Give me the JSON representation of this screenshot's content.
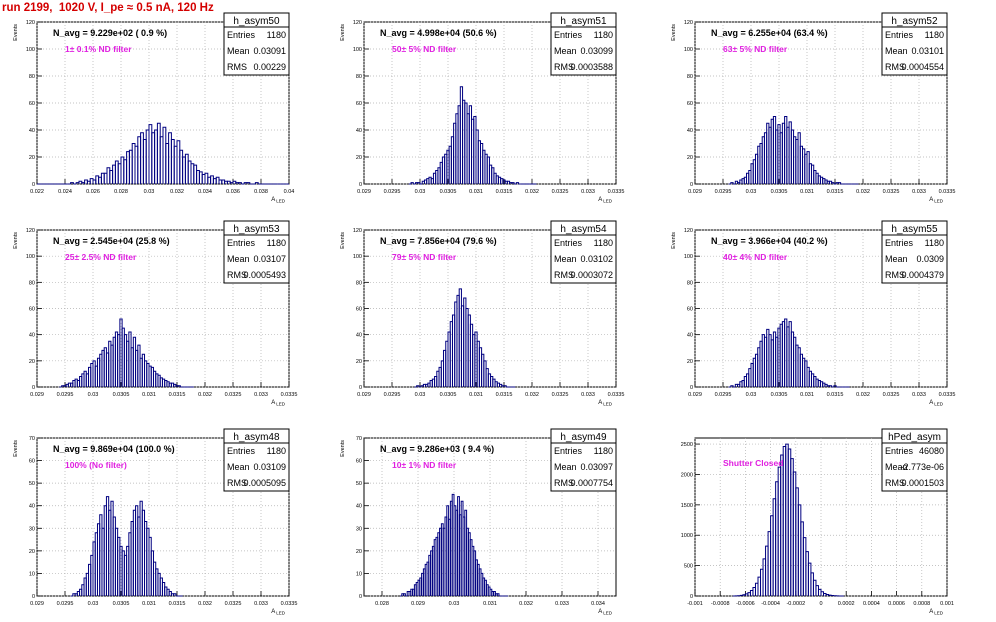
{
  "page": {
    "title": "run 2199,  1020 V, I_pe ≈ 0.5 nA, 120 Hz"
  },
  "chart_data": [
    {
      "type": "histogram",
      "name": "h_asym50",
      "navg": "N_avg = 9.229e+02 ( 0.9 %)",
      "filter_label": "1± 0.1% ND filter",
      "stats": [
        [
          "Entries",
          "1180"
        ],
        [
          "Mean",
          "0.03091"
        ],
        [
          "RMS",
          "0.00229"
        ]
      ],
      "xlabel": "A_LED",
      "ylabel": "Events",
      "xlim": [
        0.022,
        0.04
      ],
      "ylim": [
        0,
        120
      ],
      "xticks": [
        0.022,
        0.024,
        0.026,
        0.028,
        0.03,
        0.032,
        0.034,
        0.036,
        0.038,
        0.04
      ],
      "xtick_labels": [
        "0.022",
        "0.024",
        "0.026",
        "0.028",
        "0.03",
        "0.032",
        "0.034",
        "0.036",
        "0.038",
        "0.04"
      ],
      "yticks": [
        0,
        20,
        40,
        60,
        80,
        100,
        120
      ],
      "xstart": 0.022,
      "bin_width": 0.0002,
      "counts": [
        0,
        0,
        0,
        0,
        0,
        0,
        0,
        0,
        0,
        0,
        0,
        0,
        1,
        0,
        1,
        2,
        1,
        3,
        2,
        4,
        3,
        6,
        5,
        8,
        8,
        12,
        10,
        14,
        17,
        15,
        20,
        18,
        24,
        25,
        30,
        28,
        35,
        38,
        33,
        40,
        44,
        38,
        40,
        45,
        35,
        42,
        30,
        38,
        33,
        28,
        32,
        25,
        20,
        22,
        17,
        15,
        14,
        10,
        9,
        7,
        8,
        5,
        6,
        4,
        5,
        3,
        3,
        2,
        2,
        1,
        2,
        1,
        1,
        0,
        1,
        1,
        0,
        0,
        1,
        0,
        0,
        0,
        0,
        0,
        0,
        0,
        0,
        0,
        0,
        0
      ]
    },
    {
      "type": "histogram",
      "name": "h_asym51",
      "navg": "N_avg = 4.998e+04 (50.6 %)",
      "filter_label": "50± 5% ND filter",
      "stats": [
        [
          "Entries",
          "1180"
        ],
        [
          "Mean",
          "0.03099"
        ],
        [
          "RMS",
          "0.0003588"
        ]
      ],
      "xlabel": "A_LED",
      "ylabel": "Events",
      "xlim": [
        0.029,
        0.0335
      ],
      "ylim": [
        0,
        120
      ],
      "xticks": [
        0.029,
        0.0295,
        0.03,
        0.0305,
        0.031,
        0.0315,
        0.032,
        0.0325,
        0.033,
        0.0335
      ],
      "xtick_labels": [
        "0.029",
        "0.0295",
        "0.03",
        "0.0305",
        "0.031",
        "0.0315",
        "0.032",
        "0.0325",
        "0.033",
        "0.0335"
      ],
      "yticks": [
        0,
        20,
        40,
        60,
        80,
        100,
        120
      ],
      "xstart": 0.0298,
      "bin_width": 4e-05,
      "counts": [
        0,
        1,
        0,
        1,
        1,
        0,
        2,
        3,
        4,
        5,
        4,
        8,
        10,
        12,
        16,
        20,
        22,
        25,
        28,
        35,
        45,
        52,
        58,
        72,
        62,
        60,
        52,
        58,
        48,
        50,
        40,
        32,
        30,
        25,
        22,
        20,
        14,
        12,
        8,
        6,
        5,
        4,
        3,
        2,
        2,
        1,
        1,
        0,
        1,
        0,
        0,
        0,
        0,
        0,
        0,
        0,
        0
      ]
    },
    {
      "type": "histogram",
      "name": "h_asym52",
      "navg": "N_avg = 6.255e+04 (63.4 %)",
      "filter_label": "63± 5% ND filter",
      "stats": [
        [
          "Entries",
          "1180"
        ],
        [
          "Mean",
          "0.03101"
        ],
        [
          "RMS",
          "0.0004554"
        ]
      ],
      "xlabel": "A_LED",
      "ylabel": "Events",
      "xlim": [
        0.029,
        0.0335
      ],
      "ylim": [
        0,
        120
      ],
      "xticks": [
        0.029,
        0.0295,
        0.03,
        0.0305,
        0.031,
        0.0315,
        0.032,
        0.0325,
        0.033,
        0.0335
      ],
      "xtick_labels": [
        "0.029",
        "0.0295",
        "0.03",
        "0.0305",
        "0.031",
        "0.0315",
        "0.032",
        "0.0325",
        "0.033",
        "0.0335"
      ],
      "yticks": [
        0,
        20,
        40,
        60,
        80,
        100,
        120
      ],
      "xstart": 0.0296,
      "bin_width": 4e-05,
      "counts": [
        0,
        1,
        0,
        2,
        1,
        3,
        4,
        5,
        8,
        10,
        15,
        18,
        22,
        28,
        30,
        35,
        38,
        45,
        42,
        48,
        50,
        40,
        44,
        38,
        45,
        50,
        42,
        46,
        40,
        35,
        33,
        38,
        28,
        26,
        22,
        24,
        15,
        14,
        10,
        8,
        6,
        5,
        4,
        3,
        2,
        2,
        1,
        0,
        1,
        1,
        0,
        0,
        0,
        0,
        0,
        0,
        0,
        0
      ]
    },
    {
      "type": "histogram",
      "name": "h_asym53",
      "navg": "N_avg = 2.545e+04 (25.8 %)",
      "filter_label": "25± 2.5% ND filter",
      "stats": [
        [
          "Entries",
          "1180"
        ],
        [
          "Mean",
          "0.03107"
        ],
        [
          "RMS",
          "0.0005493"
        ]
      ],
      "xlabel": "A_LED",
      "ylabel": "Events",
      "xlim": [
        0.029,
        0.0335
      ],
      "ylim": [
        0,
        120
      ],
      "xticks": [
        0.029,
        0.0295,
        0.03,
        0.0305,
        0.031,
        0.0315,
        0.032,
        0.0325,
        0.033,
        0.0335
      ],
      "xtick_labels": [
        "0.029",
        "0.0295",
        "0.03",
        "0.0305",
        "0.031",
        "0.0315",
        "0.032",
        "0.0325",
        "0.033",
        "0.0335"
      ],
      "yticks": [
        0,
        20,
        40,
        60,
        80,
        100,
        120
      ],
      "xstart": 0.0294,
      "bin_width": 4e-05,
      "counts": [
        0,
        1,
        1,
        2,
        3,
        3,
        5,
        6,
        5,
        8,
        10,
        12,
        10,
        15,
        18,
        20,
        16,
        22,
        25,
        28,
        30,
        26,
        35,
        32,
        38,
        42,
        40,
        52,
        45,
        40,
        35,
        42,
        30,
        38,
        28,
        32,
        22,
        25,
        20,
        18,
        16,
        15,
        12,
        10,
        9,
        7,
        6,
        5,
        4,
        3,
        3,
        2,
        1,
        1,
        0,
        0,
        0,
        0,
        0,
        0
      ]
    },
    {
      "type": "histogram",
      "name": "h_asym54",
      "navg": "N_avg = 7.856e+04 (79.6 %)",
      "filter_label": "79± 5% ND filter",
      "stats": [
        [
          "Entries",
          "1180"
        ],
        [
          "Mean",
          "0.03102"
        ],
        [
          "RMS",
          "0.0003072"
        ]
      ],
      "xlabel": "A_LED",
      "ylabel": "Events",
      "xlim": [
        0.029,
        0.0335
      ],
      "ylim": [
        0,
        120
      ],
      "xticks": [
        0.029,
        0.0295,
        0.03,
        0.0305,
        0.031,
        0.0315,
        0.032,
        0.0325,
        0.033,
        0.0335
      ],
      "xtick_labels": [
        "0.029",
        "0.0295",
        "0.03",
        "0.0305",
        "0.031",
        "0.0315",
        "0.032",
        "0.0325",
        "0.033",
        "0.0335"
      ],
      "yticks": [
        0,
        20,
        40,
        60,
        80,
        100,
        120
      ],
      "xstart": 0.0299,
      "bin_width": 4e-05,
      "counts": [
        0,
        1,
        0,
        1,
        2,
        2,
        3,
        5,
        6,
        8,
        12,
        15,
        20,
        28,
        35,
        42,
        50,
        55,
        65,
        70,
        75,
        62,
        68,
        60,
        55,
        48,
        40,
        42,
        35,
        30,
        25,
        20,
        14,
        10,
        8,
        6,
        4,
        3,
        2,
        1,
        1,
        0,
        0,
        0,
        0
      ]
    },
    {
      "type": "histogram",
      "name": "h_asym55",
      "navg": "N_avg = 3.966e+04 (40.2 %)",
      "filter_label": "40± 4% ND filter",
      "stats": [
        [
          "Entries",
          "1180"
        ],
        [
          "Mean",
          "0.0309"
        ],
        [
          "RMS",
          "0.0004379"
        ]
      ],
      "xlabel": "A_LED",
      "ylabel": "Events",
      "xlim": [
        0.029,
        0.0335
      ],
      "ylim": [
        0,
        120
      ],
      "xticks": [
        0.029,
        0.0295,
        0.03,
        0.0305,
        0.031,
        0.0315,
        0.032,
        0.0325,
        0.033,
        0.0335
      ],
      "xtick_labels": [
        "0.029",
        "0.0295",
        "0.03",
        "0.0305",
        "0.031",
        "0.0315",
        "0.032",
        "0.0325",
        "0.033",
        "0.0335"
      ],
      "yticks": [
        0,
        20,
        40,
        60,
        80,
        100,
        120
      ],
      "xstart": 0.0296,
      "bin_width": 4e-05,
      "counts": [
        0,
        1,
        0,
        2,
        2,
        4,
        5,
        8,
        10,
        14,
        18,
        22,
        25,
        30,
        35,
        40,
        38,
        44,
        40,
        36,
        42,
        38,
        45,
        48,
        50,
        52,
        46,
        50,
        42,
        38,
        32,
        30,
        25,
        22,
        20,
        15,
        12,
        10,
        8,
        6,
        5,
        4,
        3,
        2,
        1,
        1,
        0,
        1,
        0,
        0,
        0,
        0,
        0,
        0
      ]
    },
    {
      "type": "histogram",
      "name": "h_asym48",
      "navg": "N_avg = 9.869e+04 (100.0 %)",
      "filter_label": "100% (No filter)",
      "stats": [
        [
          "Entries",
          "1180"
        ],
        [
          "Mean",
          "0.03109"
        ],
        [
          "RMS",
          "0.0005095"
        ]
      ],
      "xlabel": "A_LED",
      "ylabel": "Events",
      "xlim": [
        0.029,
        0.0335
      ],
      "ylim": [
        0,
        70
      ],
      "xticks": [
        0.029,
        0.0295,
        0.03,
        0.0305,
        0.031,
        0.0315,
        0.032,
        0.0325,
        0.033,
        0.0335
      ],
      "xtick_labels": [
        "0.029",
        "0.0295",
        "0.03",
        "0.0305",
        "0.031",
        "0.0315",
        "0.032",
        "0.0325",
        "0.033",
        "0.0335"
      ],
      "yticks": [
        0,
        10,
        20,
        30,
        40,
        50,
        60,
        70
      ],
      "xstart": 0.0296,
      "bin_width": 4e-05,
      "counts": [
        0,
        1,
        1,
        2,
        3,
        5,
        8,
        10,
        14,
        18,
        24,
        28,
        32,
        36,
        30,
        40,
        44,
        38,
        42,
        35,
        30,
        26,
        22,
        20,
        18,
        22,
        28,
        33,
        38,
        40,
        35,
        42,
        38,
        33,
        30,
        26,
        20,
        15,
        12,
        10,
        8,
        6,
        4,
        3,
        2,
        1,
        1,
        0,
        0,
        0
      ]
    },
    {
      "type": "histogram",
      "name": "h_asym49",
      "navg": "N_avg = 9.286e+03 ( 9.4 %)",
      "filter_label": "10± 1% ND filter",
      "stats": [
        [
          "Entries",
          "1180"
        ],
        [
          "Mean",
          "0.03097"
        ],
        [
          "RMS",
          "0.0007754"
        ]
      ],
      "xlabel": "A_LED",
      "ylabel": "Events",
      "xlim": [
        0.0275,
        0.0345
      ],
      "ylim": [
        0,
        70
      ],
      "xticks": [
        0.028,
        0.029,
        0.03,
        0.031,
        0.032,
        0.033,
        0.034
      ],
      "xtick_labels": [
        "0.028",
        "0.029",
        "0.03",
        "0.031",
        "0.032",
        "0.033",
        "0.034"
      ],
      "yticks": [
        0,
        10,
        20,
        30,
        40,
        50,
        60,
        70
      ],
      "xstart": 0.0285,
      "bin_width": 5e-05,
      "counts": [
        0,
        1,
        1,
        0,
        2,
        2,
        3,
        3,
        5,
        6,
        7,
        8,
        10,
        12,
        14,
        15,
        18,
        20,
        22,
        25,
        26,
        28,
        30,
        32,
        30,
        35,
        40,
        34,
        42,
        45,
        40,
        38,
        44,
        36,
        42,
        35,
        38,
        30,
        28,
        25,
        22,
        20,
        16,
        14,
        12,
        10,
        8,
        7,
        5,
        4,
        3,
        2,
        2,
        1,
        1,
        0,
        0,
        0,
        0,
        0
      ]
    },
    {
      "type": "histogram",
      "name": "hPed_asym",
      "navg": "",
      "filter_label": "Shutter Closed",
      "stats": [
        [
          "Entries",
          "46080"
        ],
        [
          "Mean",
          "-2.773e-06"
        ],
        [
          "RMS",
          "0.0001503"
        ]
      ],
      "xlabel": "A_LED",
      "ylabel": "",
      "xlim": [
        -0.001,
        0.001
      ],
      "ylim": [
        0,
        2600
      ],
      "xticks": [
        -0.001,
        -0.0008,
        -0.0006,
        -0.0004,
        -0.0002,
        0,
        0.0002,
        0.0004,
        0.0006,
        0.0008,
        0.001
      ],
      "xtick_labels": [
        "-0.001",
        "-0.0008",
        "-0.0006",
        "-0.0004",
        "-0.0002",
        "0",
        "0.0002",
        "0.0004",
        "0.0006",
        "0.0008",
        "0.001"
      ],
      "yticks": [
        0,
        500,
        1000,
        1500,
        2000,
        2500
      ],
      "xstart": -0.0007,
      "bin_width": 2e-05,
      "counts": [
        0,
        2,
        5,
        10,
        20,
        35,
        55,
        90,
        140,
        210,
        310,
        440,
        610,
        820,
        1060,
        1320,
        1600,
        1880,
        2120,
        2320,
        2460,
        2500,
        2420,
        2260,
        2040,
        1780,
        1500,
        1220,
        960,
        730,
        540,
        380,
        260,
        170,
        110,
        70,
        42,
        25,
        14,
        8,
        4,
        2,
        1,
        0
      ]
    }
  ]
}
